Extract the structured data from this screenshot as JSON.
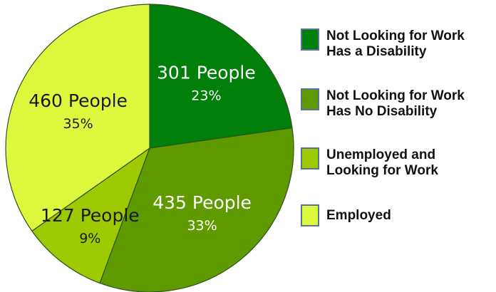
{
  "chart_data": {
    "type": "pie",
    "slices": [
      {
        "name": "Not Looking for Work Has a Disability",
        "count_label": "301 People",
        "pct_label": "23%",
        "value": 301,
        "percent": 23,
        "color": "#00800b",
        "text_color": "#ffffff"
      },
      {
        "name": "Not Looking for Work Has No Disability",
        "count_label": "435 People",
        "pct_label": "33%",
        "value": 435,
        "percent": 33,
        "color": "#5f9b00",
        "text_color": "#ffffff"
      },
      {
        "name": "Unemployed and Looking for Work",
        "count_label": "127 People",
        "pct_label": "9%",
        "value": 127,
        "percent": 9,
        "color": "#9dca00",
        "text_color": "#1a1a1a"
      },
      {
        "name": "Employed",
        "count_label": "460 People",
        "pct_label": "35%",
        "value": 460,
        "percent": 35,
        "color": "#ddf83d",
        "text_color": "#1a1a1a"
      }
    ],
    "legend": [
      {
        "line1": "Not Looking for Work",
        "line2": "Has a Disability",
        "color": "#00800b"
      },
      {
        "line1": "Not Looking for Work",
        "line2": "Has No Disability",
        "color": "#5f9b00"
      },
      {
        "line1": "Unemployed and",
        "line2": "Looking for Work",
        "color": "#9dca00"
      },
      {
        "line1": "Employed",
        "line2": "",
        "color": "#ddf83d"
      }
    ],
    "legend_placement": "right",
    "start_angle_deg": 0,
    "direction": "clockwise"
  }
}
